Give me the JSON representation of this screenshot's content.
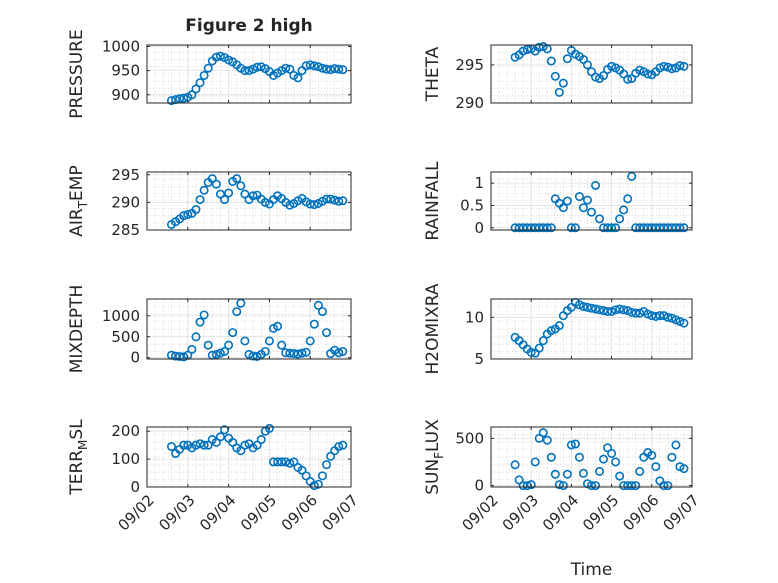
{
  "figure_title": "Figure 2 high",
  "marker_color": "#0072bd",
  "chart_data": [
    {
      "id": "pressure",
      "type": "scatter",
      "title": "Figure 2 high",
      "ylabel": "PRESSURE",
      "xlabel": "",
      "xlim": [
        0,
        5
      ],
      "ylim": [
        883,
        1003
      ],
      "yticks": [
        900,
        950,
        1000
      ],
      "x": [
        0.6,
        0.7,
        0.8,
        0.9,
        1.0,
        1.1,
        1.2,
        1.3,
        1.4,
        1.5,
        1.6,
        1.7,
        1.8,
        1.9,
        2.0,
        2.1,
        2.2,
        2.3,
        2.4,
        2.5,
        2.6,
        2.7,
        2.8,
        2.9,
        3.0,
        3.1,
        3.2,
        3.3,
        3.4,
        3.5,
        3.6,
        3.7,
        3.8,
        3.9,
        4.0,
        4.1,
        4.2,
        4.3,
        4.4,
        4.5,
        4.6,
        4.7,
        4.8
      ],
      "y": [
        888,
        890,
        892,
        893,
        895,
        900,
        912,
        925,
        940,
        955,
        970,
        978,
        980,
        977,
        972,
        968,
        962,
        955,
        950,
        950,
        953,
        957,
        958,
        954,
        948,
        940,
        945,
        950,
        955,
        953,
        940,
        935,
        950,
        960,
        962,
        960,
        958,
        955,
        953,
        952,
        954,
        953,
        952
      ]
    },
    {
      "id": "theta",
      "type": "scatter",
      "ylabel": "THETA",
      "xlabel": "",
      "xlim": [
        0,
        5
      ],
      "ylim": [
        290,
        297.6
      ],
      "yticks": [
        290,
        295
      ],
      "x": [
        0.6,
        0.7,
        0.8,
        0.9,
        1.0,
        1.1,
        1.2,
        1.3,
        1.4,
        1.5,
        1.6,
        1.7,
        1.8,
        1.9,
        2.0,
        2.1,
        2.2,
        2.3,
        2.4,
        2.5,
        2.6,
        2.7,
        2.8,
        2.9,
        3.0,
        3.1,
        3.2,
        3.3,
        3.4,
        3.5,
        3.6,
        3.7,
        3.8,
        3.9,
        4.0,
        4.1,
        4.2,
        4.3,
        4.4,
        4.5,
        4.6,
        4.7,
        4.8
      ],
      "y": [
        296.0,
        296.3,
        296.8,
        297.0,
        297.1,
        296.8,
        297.3,
        297.4,
        297.1,
        295.5,
        293.5,
        291.4,
        292.6,
        295.8,
        296.9,
        296.4,
        296.1,
        295.7,
        295.0,
        294.1,
        293.4,
        293.2,
        293.6,
        294.4,
        294.8,
        294.6,
        294.3,
        293.8,
        293.1,
        293.2,
        293.9,
        294.3,
        294.1,
        293.8,
        293.7,
        294.1,
        294.6,
        294.8,
        294.7,
        294.5,
        294.6,
        294.9,
        294.8
      ]
    },
    {
      "id": "airtemp",
      "type": "scatter",
      "ylabel": "AIR_TEMP",
      "ylabel_main": "AIR",
      "ylabel_sub": "T",
      "ylabel_rest": "EMP",
      "xlabel": "",
      "xlim": [
        0,
        5
      ],
      "ylim": [
        285,
        295.5
      ],
      "yticks": [
        285,
        290,
        295
      ],
      "x": [
        0.6,
        0.7,
        0.8,
        0.9,
        1.0,
        1.1,
        1.2,
        1.3,
        1.4,
        1.5,
        1.6,
        1.7,
        1.8,
        1.9,
        2.0,
        2.1,
        2.2,
        2.3,
        2.4,
        2.5,
        2.6,
        2.7,
        2.8,
        2.9,
        3.0,
        3.1,
        3.2,
        3.3,
        3.4,
        3.5,
        3.6,
        3.7,
        3.8,
        3.9,
        4.0,
        4.1,
        4.2,
        4.3,
        4.4,
        4.5,
        4.6,
        4.7,
        4.8
      ],
      "y": [
        286.0,
        286.5,
        287.0,
        287.6,
        287.8,
        288.0,
        288.7,
        290.5,
        292.2,
        293.6,
        294.3,
        293.3,
        291.5,
        290.5,
        291.7,
        293.8,
        294.3,
        293.0,
        291.5,
        290.5,
        291.2,
        291.3,
        290.6,
        290.0,
        289.7,
        290.5,
        291.2,
        290.7,
        290.0,
        289.5,
        289.8,
        290.3,
        290.7,
        290.1,
        289.7,
        289.6,
        289.8,
        290.2,
        290.6,
        290.6,
        290.4,
        290.2,
        290.3
      ]
    },
    {
      "id": "rainfall",
      "type": "scatter",
      "ylabel": "RAINFALL",
      "xlabel": "",
      "xlim": [
        0,
        5
      ],
      "ylim": [
        -0.05,
        1.25
      ],
      "yticks": [
        0,
        0.5,
        1
      ],
      "yticklabels": [
        "0",
        "0.5",
        "1"
      ],
      "x": [
        0.6,
        0.7,
        0.8,
        0.9,
        1.0,
        1.1,
        1.2,
        1.3,
        1.4,
        1.5,
        1.6,
        1.7,
        1.8,
        1.9,
        2.0,
        2.1,
        2.2,
        2.3,
        2.4,
        2.5,
        2.6,
        2.7,
        2.8,
        2.9,
        3.0,
        3.1,
        3.2,
        3.3,
        3.4,
        3.5,
        3.6,
        3.7,
        3.8,
        3.9,
        4.0,
        4.1,
        4.2,
        4.3,
        4.4,
        4.5,
        4.6,
        4.7,
        4.8
      ],
      "y": [
        0,
        0,
        0,
        0,
        0,
        0,
        0,
        0,
        0,
        0,
        0.65,
        0.55,
        0.45,
        0.6,
        0,
        0,
        0.7,
        0.45,
        0.62,
        0.35,
        0.95,
        0.2,
        0,
        0,
        0,
        0,
        0.2,
        0.4,
        0.65,
        1.15,
        0,
        0,
        0,
        0,
        0,
        0,
        0,
        0,
        0,
        0,
        0,
        0,
        0
      ]
    },
    {
      "id": "mixdepth",
      "type": "scatter",
      "ylabel": "MIXDEPTH",
      "xlabel": "",
      "xlim": [
        0,
        5
      ],
      "ylim": [
        -30,
        1400
      ],
      "yticks": [
        0,
        500,
        1000
      ],
      "x": [
        0.6,
        0.7,
        0.8,
        0.9,
        1.0,
        1.1,
        1.2,
        1.3,
        1.4,
        1.5,
        1.6,
        1.7,
        1.8,
        1.9,
        2.0,
        2.1,
        2.2,
        2.3,
        2.4,
        2.5,
        2.6,
        2.7,
        2.8,
        2.9,
        3.0,
        3.1,
        3.2,
        3.3,
        3.4,
        3.5,
        3.6,
        3.7,
        3.8,
        3.9,
        4.0,
        4.1,
        4.2,
        4.3,
        4.4,
        4.5,
        4.6,
        4.7,
        4.8
      ],
      "y": [
        60,
        40,
        30,
        20,
        60,
        200,
        500,
        850,
        1020,
        300,
        60,
        80,
        110,
        150,
        300,
        600,
        1100,
        1300,
        400,
        80,
        40,
        30,
        80,
        150,
        400,
        700,
        750,
        300,
        120,
        110,
        100,
        90,
        110,
        130,
        400,
        800,
        1250,
        1100,
        600,
        100,
        180,
        120,
        150
      ]
    },
    {
      "id": "h2omixra",
      "type": "scatter",
      "ylabel": "H2OMIXRA",
      "xlabel": "",
      "xlim": [
        0,
        5
      ],
      "ylim": [
        5,
        12.2
      ],
      "yticks": [
        5,
        10
      ],
      "x": [
        0.6,
        0.7,
        0.8,
        0.9,
        1.0,
        1.1,
        1.2,
        1.3,
        1.4,
        1.5,
        1.6,
        1.7,
        1.8,
        1.9,
        2.0,
        2.1,
        2.2,
        2.3,
        2.4,
        2.5,
        2.6,
        2.7,
        2.8,
        2.9,
        3.0,
        3.1,
        3.2,
        3.3,
        3.4,
        3.5,
        3.6,
        3.7,
        3.8,
        3.9,
        4.0,
        4.1,
        4.2,
        4.3,
        4.4,
        4.5,
        4.6,
        4.7,
        4.8
      ],
      "y": [
        7.6,
        7.2,
        6.7,
        6.2,
        5.8,
        5.7,
        6.3,
        7.2,
        8.0,
        8.4,
        8.6,
        9.0,
        10.2,
        10.8,
        11.2,
        11.8,
        11.5,
        11.3,
        11.2,
        11.1,
        11.0,
        10.9,
        10.8,
        10.7,
        10.7,
        10.9,
        11.0,
        10.9,
        10.8,
        10.6,
        10.5,
        10.5,
        10.7,
        10.4,
        10.2,
        10.1,
        10.2,
        10.2,
        10.0,
        9.9,
        9.7,
        9.5,
        9.3
      ]
    },
    {
      "id": "terrmsl",
      "type": "scatter",
      "ylabel": "TERR_MSL",
      "ylabel_main": "TERR",
      "ylabel_sub": "M",
      "ylabel_rest": "SL",
      "xlabel": "",
      "xlim": [
        0,
        5
      ],
      "ylim": [
        0,
        215
      ],
      "yticks": [
        0,
        100,
        200
      ],
      "x": [
        0.6,
        0.7,
        0.8,
        0.9,
        1.0,
        1.1,
        1.2,
        1.3,
        1.4,
        1.5,
        1.6,
        1.7,
        1.8,
        1.9,
        2.0,
        2.1,
        2.2,
        2.3,
        2.4,
        2.5,
        2.6,
        2.7,
        2.8,
        2.9,
        3.0,
        3.1,
        3.2,
        3.3,
        3.4,
        3.5,
        3.6,
        3.7,
        3.8,
        3.9,
        4.0,
        4.1,
        4.2,
        4.3,
        4.4,
        4.5,
        4.6,
        4.7,
        4.8
      ],
      "y": [
        145,
        120,
        135,
        150,
        150,
        140,
        150,
        155,
        150,
        150,
        170,
        160,
        180,
        205,
        175,
        160,
        140,
        130,
        150,
        155,
        140,
        150,
        170,
        200,
        210,
        90,
        90,
        90,
        90,
        85,
        90,
        70,
        60,
        40,
        20,
        5,
        10,
        40,
        80,
        110,
        130,
        145,
        150
      ]
    },
    {
      "id": "sunflux",
      "type": "scatter",
      "ylabel": "SUN_FLUX",
      "ylabel_main": "SUN",
      "ylabel_sub": "F",
      "ylabel_rest": "LUX",
      "xlabel": "Time",
      "xlim": [
        0,
        5
      ],
      "ylim": [
        -15,
        620
      ],
      "yticks": [
        0,
        500
      ],
      "x": [
        0.6,
        0.7,
        0.8,
        0.9,
        1.0,
        1.1,
        1.2,
        1.3,
        1.4,
        1.5,
        1.6,
        1.7,
        1.8,
        1.9,
        2.0,
        2.1,
        2.2,
        2.3,
        2.4,
        2.5,
        2.6,
        2.7,
        2.8,
        2.9,
        3.0,
        3.1,
        3.2,
        3.3,
        3.4,
        3.5,
        3.6,
        3.7,
        3.8,
        3.9,
        4.0,
        4.1,
        4.2,
        4.3,
        4.4,
        4.5,
        4.6,
        4.7,
        4.8
      ],
      "y": [
        220,
        60,
        0,
        0,
        10,
        250,
        500,
        560,
        480,
        300,
        120,
        10,
        0,
        120,
        430,
        440,
        300,
        130,
        20,
        0,
        0,
        150,
        280,
        400,
        340,
        250,
        100,
        0,
        0,
        0,
        0,
        150,
        300,
        350,
        320,
        200,
        50,
        0,
        0,
        300,
        430,
        200,
        180
      ]
    }
  ],
  "x_axis": {
    "label": "Time",
    "ticks": [
      0,
      1,
      2,
      3,
      4,
      5
    ],
    "ticklabels": [
      "09/02",
      "09/03",
      "09/04",
      "09/05",
      "09/06",
      "09/07"
    ]
  }
}
